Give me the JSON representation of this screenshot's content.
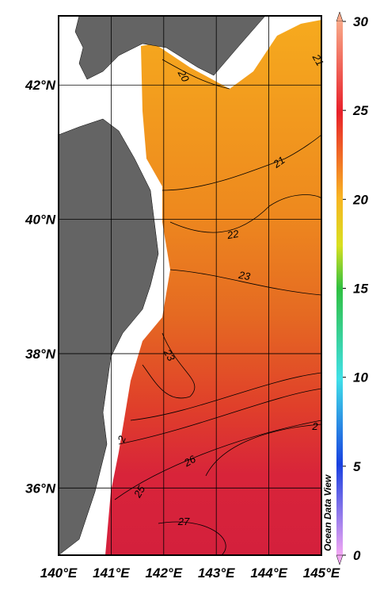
{
  "map": {
    "lon_range": [
      140,
      145
    ],
    "lat_range": [
      35,
      43.03
    ],
    "lon_ticks": [
      {
        "value": 140,
        "label": "140°E"
      },
      {
        "value": 141,
        "label": "141°E"
      },
      {
        "value": 142,
        "label": "142°E"
      },
      {
        "value": 143,
        "label": "143°E"
      },
      {
        "value": 144,
        "label": "144°E"
      },
      {
        "value": 145,
        "label": "145°E"
      }
    ],
    "lat_ticks": [
      {
        "value": 36,
        "label": "36°N"
      },
      {
        "value": 38,
        "label": "38°N"
      },
      {
        "value": 40,
        "label": "40°N"
      },
      {
        "value": 42,
        "label": "42°N"
      }
    ],
    "contour_labels": [
      "20",
      "21",
      "21",
      "22",
      "23",
      "23",
      "2",
      "25",
      "26",
      "27",
      "2"
    ],
    "colorbar": {
      "range": [
        0,
        30
      ],
      "ticks": [
        0,
        5,
        10,
        15,
        20,
        25,
        30
      ]
    },
    "watermark": "Ocean Data View"
  }
}
